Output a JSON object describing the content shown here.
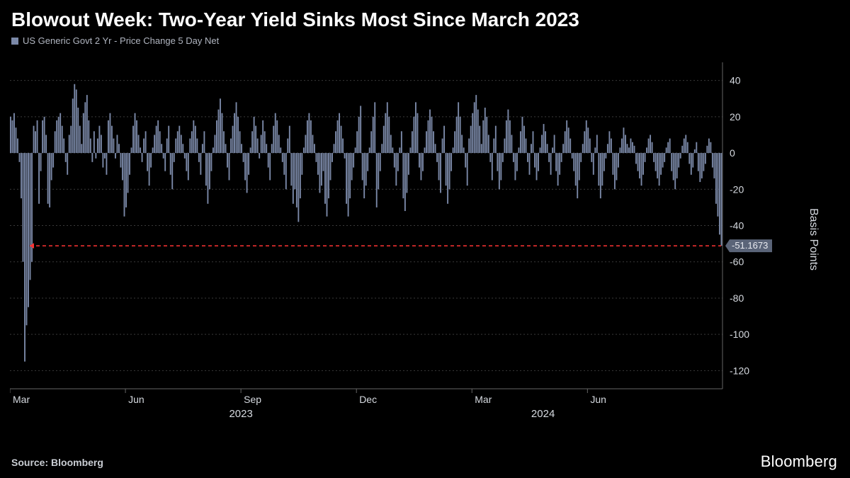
{
  "title": "Blowout Week: Two-Year Yield Sinks Most Since March 2023",
  "legend_label": "US Generic Govt 2 Yr - Price Change 5 Day Net",
  "source": "Source: Bloomberg",
  "brand": "Bloomberg",
  "y_axis_label": "Basis Points",
  "chart": {
    "type": "bar",
    "background_color": "#000000",
    "bar_color": "#7b89a8",
    "grid_color": "#3a3a3a",
    "axis_text_color": "#d6dae0",
    "ref_line_color": "#ff3333",
    "ref_line_value": -51.1673,
    "ref_line_label": "-51.1673",
    "ylim": [
      -130,
      50
    ],
    "yticks": [
      40,
      20,
      0,
      -20,
      -40,
      -60,
      -80,
      -100,
      -120
    ],
    "x_month_ticks": [
      {
        "label": "Mar",
        "year_group": "2023",
        "index": 0
      },
      {
        "label": "Jun",
        "year_group": "2023",
        "index": 65
      },
      {
        "label": "Sep",
        "year_group": "2023",
        "index": 130
      },
      {
        "label": "Dec",
        "year_group": "2023",
        "index": 195
      },
      {
        "label": "Mar",
        "year_group": "2024",
        "index": 260
      },
      {
        "label": "Jun",
        "year_group": "2024",
        "index": 325
      }
    ],
    "year_groups": [
      {
        "label": "2023",
        "center_index": 130
      },
      {
        "label": "2024",
        "center_index": 300
      }
    ],
    "series_values": [
      20,
      18,
      22,
      14,
      8,
      -5,
      -25,
      -60,
      -115,
      -95,
      -85,
      -70,
      -60,
      15,
      12,
      18,
      -28,
      -10,
      18,
      20,
      10,
      -28,
      -30,
      -15,
      -8,
      12,
      18,
      20,
      22,
      15,
      8,
      -5,
      -12,
      10,
      15,
      30,
      38,
      35,
      25,
      15,
      5,
      22,
      28,
      32,
      18,
      8,
      -5,
      12,
      -3,
      8,
      15,
      10,
      -8,
      -3,
      -12,
      18,
      22,
      15,
      8,
      -3,
      10,
      5,
      -8,
      -15,
      -35,
      -30,
      -22,
      -12,
      3,
      15,
      22,
      18,
      10,
      3,
      -5,
      8,
      12,
      -10,
      -18,
      -8,
      3,
      10,
      15,
      18,
      12,
      5,
      -3,
      -10,
      8,
      15,
      -12,
      -20,
      -5,
      8,
      12,
      15,
      10,
      5,
      -3,
      -10,
      -15,
      8,
      12,
      18,
      15,
      8,
      -5,
      -12,
      5,
      12,
      -18,
      -28,
      -20,
      -10,
      3,
      10,
      18,
      24,
      30,
      22,
      12,
      5,
      -8,
      -15,
      8,
      15,
      22,
      28,
      20,
      12,
      5,
      -5,
      -15,
      -22,
      -12,
      3,
      12,
      20,
      15,
      8,
      -3,
      10,
      18,
      12,
      5,
      -8,
      -15,
      5,
      15,
      22,
      18,
      10,
      3,
      -5,
      -12,
      -20,
      8,
      15,
      -18,
      -28,
      -20,
      -30,
      -38,
      -25,
      -12,
      3,
      10,
      18,
      22,
      18,
      10,
      5,
      -5,
      -12,
      -22,
      -18,
      -10,
      -28,
      -35,
      -25,
      -15,
      -5,
      5,
      12,
      18,
      22,
      15,
      8,
      -3,
      -28,
      -35,
      -25,
      -15,
      -8,
      3,
      12,
      20,
      26,
      -15,
      -25,
      -18,
      -10,
      3,
      12,
      20,
      28,
      -30,
      -20,
      -10,
      5,
      15,
      22,
      28,
      20,
      10,
      3,
      -8,
      -18,
      -10,
      3,
      12,
      -25,
      -32,
      -22,
      -12,
      3,
      12,
      20,
      28,
      22,
      -8,
      -15,
      -10,
      3,
      12,
      18,
      24,
      20,
      12,
      5,
      -5,
      -15,
      -22,
      8,
      15,
      -18,
      -28,
      -20,
      -10,
      3,
      12,
      20,
      28,
      20,
      10,
      3,
      -8,
      -18,
      8,
      15,
      22,
      28,
      32,
      24,
      15,
      5,
      18,
      25,
      20,
      10,
      -5,
      -15,
      8,
      15,
      -10,
      -20,
      -15,
      -5,
      8,
      18,
      24,
      18,
      10,
      -5,
      -15,
      -10,
      3,
      12,
      20,
      15,
      8,
      -5,
      -12,
      5,
      12,
      -8,
      -15,
      -10,
      3,
      10,
      16,
      12,
      5,
      -5,
      -12,
      3,
      10,
      -10,
      -18,
      -12,
      -5,
      5,
      12,
      18,
      14,
      8,
      -3,
      -10,
      -18,
      -25,
      -15,
      -5,
      5,
      12,
      18,
      14,
      8,
      -5,
      -12,
      3,
      10,
      -18,
      -25,
      -18,
      -10,
      -3,
      5,
      12,
      8,
      -12,
      -20,
      -15,
      -8,
      3,
      8,
      14,
      10,
      5,
      3,
      8,
      6,
      4,
      -6,
      -10,
      -14,
      -18,
      -12,
      -5,
      3,
      8,
      10,
      6,
      -5,
      -10,
      -14,
      -18,
      -12,
      -8,
      -5,
      3,
      6,
      8,
      -10,
      -15,
      -20,
      -14,
      -8,
      -3,
      4,
      8,
      10,
      6,
      -6,
      -12,
      -8,
      2,
      6,
      -10,
      -16,
      -14,
      -10,
      -6,
      4,
      8,
      6,
      -8,
      -14,
      -28,
      -35,
      -45,
      -51.1673
    ],
    "title_fontsize": 28,
    "label_fontsize": 14
  }
}
